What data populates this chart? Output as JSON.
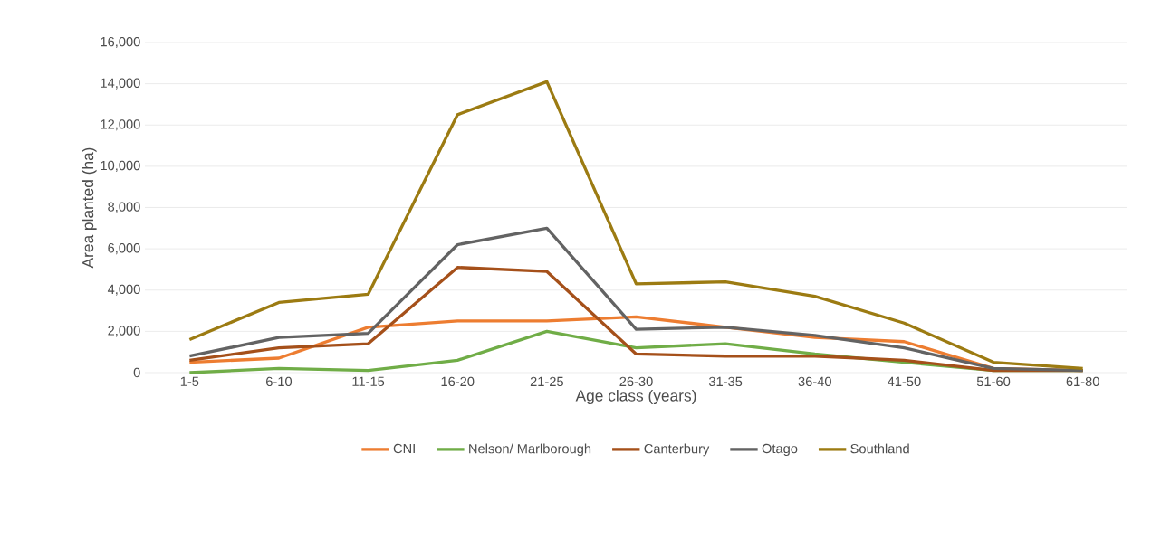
{
  "chart_data": {
    "type": "line",
    "xlabel": "Age class (years)",
    "ylabel": "Area planted (ha)",
    "categories": [
      "1-5",
      "6-10",
      "11-15",
      "16-20",
      "21-25",
      "26-30",
      "31-35",
      "36-40",
      "41-50",
      "51-60",
      "61-80"
    ],
    "series": [
      {
        "name": "CNI",
        "color": "#ed7d31",
        "values": [
          500,
          700,
          2200,
          2500,
          2500,
          2700,
          2200,
          1700,
          1500,
          200,
          100
        ]
      },
      {
        "name": "Nelson/ Marlborough",
        "color": "#70ad47",
        "values": [
          0,
          200,
          100,
          600,
          2000,
          1200,
          1400,
          900,
          500,
          100,
          100
        ]
      },
      {
        "name": "Canterbury",
        "color": "#a5501a",
        "values": [
          600,
          1200,
          1400,
          5100,
          4900,
          900,
          800,
          800,
          600,
          100,
          100
        ]
      },
      {
        "name": "Otago",
        "color": "#636363",
        "values": [
          800,
          1700,
          1900,
          6200,
          7000,
          2100,
          2200,
          1800,
          1200,
          200,
          100
        ]
      },
      {
        "name": "Southland",
        "color": "#9c7b12",
        "values": [
          1600,
          3400,
          3800,
          12500,
          14100,
          4300,
          4400,
          3700,
          2400,
          500,
          200
        ]
      }
    ],
    "ylim": [
      0,
      16000
    ],
    "yticks": [
      {
        "value": 0,
        "label": "0"
      },
      {
        "value": 2000,
        "label": "2,000"
      },
      {
        "value": 4000,
        "label": "4,000"
      },
      {
        "value": 6000,
        "label": "6,000"
      },
      {
        "value": 8000,
        "label": "8,000"
      },
      {
        "value": 10000,
        "label": "10,000"
      },
      {
        "value": 12000,
        "label": "12,000"
      },
      {
        "value": 14000,
        "label": "14,000"
      },
      {
        "value": 16000,
        "label": "16,000"
      }
    ],
    "grid": "y",
    "legend": "bottom",
    "marker": "none",
    "line_style": "solid"
  }
}
